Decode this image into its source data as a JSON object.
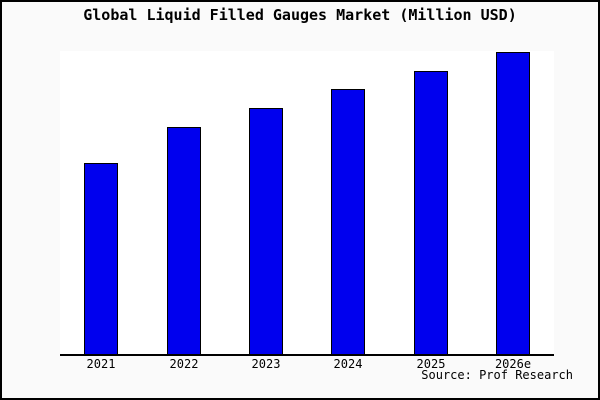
{
  "window": {
    "background_color": "#fafafa",
    "frame_color": "#000000"
  },
  "chart_data": {
    "type": "bar",
    "title": "Global Liquid Filled Gauges Market (Million USD)",
    "categories": [
      "2021",
      "2022",
      "2023",
      "2024",
      "2025",
      "2026e"
    ],
    "values": [
      63.2,
      75.2,
      81.5,
      87.7,
      93.7,
      100
    ],
    "value_note": "y-axis has no tick labels or gridlines; values are relative bar heights indexed to 2026e = 100",
    "xlabel": "",
    "ylabel": "",
    "ylim": [
      0,
      100.4
    ],
    "grid": false,
    "legend": false,
    "plot_background": "#ffffff",
    "bar_color": "#0000ee",
    "bar_edge_color": "#000000",
    "axis_color": "#000000",
    "source_note": "Source: Prof Research"
  }
}
